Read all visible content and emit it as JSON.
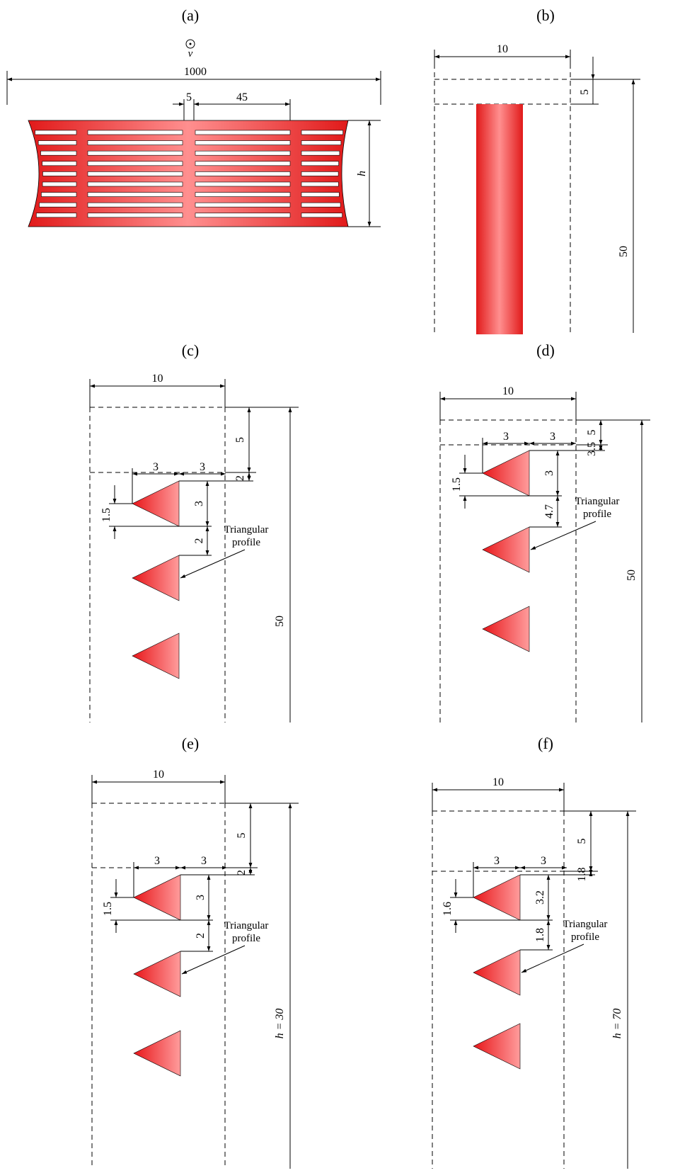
{
  "panels": {
    "a": {
      "caption": "(a)",
      "velocity_symbol": "v",
      "width_label": "1000",
      "gap_label": "5",
      "pitch_label": "45",
      "height_label": "h",
      "slot_rows": 9
    },
    "b": {
      "caption": "(b)",
      "width_label": "10",
      "offset_label": "5",
      "length_label": "50"
    },
    "c": {
      "caption": "(c)",
      "width_label": "10",
      "offset_label": "5",
      "gap_top_label": "2",
      "tri_left_label": "3",
      "tri_right_label": "3",
      "tri_half_label": "1.5",
      "tri_height_label": "3",
      "spacing_label": "2",
      "length_label": "50",
      "note_line1": "Triangular",
      "note_line2": "profile"
    },
    "d": {
      "caption": "(d)",
      "width_label": "10",
      "offset_label": "5",
      "gap_top_label": "3.5",
      "tri_left_label": "3",
      "tri_right_label": "3",
      "tri_half_label": "1.5",
      "tri_height_label": "3",
      "spacing_label": "4.7",
      "length_label": "50",
      "note_line1": "Triangular",
      "note_line2": "profile"
    },
    "e": {
      "caption": "(e)",
      "width_label": "10",
      "offset_label": "5",
      "gap_top_label": "2",
      "tri_left_label": "3",
      "tri_right_label": "3",
      "tri_half_label": "1.5",
      "tri_height_label": "3",
      "spacing_label": "2",
      "length_label": "h = 30",
      "note_line1": "Triangular",
      "note_line2": "profile"
    },
    "f": {
      "caption": "(f)",
      "width_label": "10",
      "offset_label": "5",
      "gap_top_label": "1.8",
      "tri_left_label": "3",
      "tri_right_label": "3",
      "tri_half_label": "1.6",
      "tri_height_label": "3.2",
      "spacing_label": "1.8",
      "length_label": "h = 70",
      "note_line1": "Triangular",
      "note_line2": "profile"
    }
  },
  "colors": {
    "profile_dark": "#e21a1a",
    "profile_light": "#ff8c8c",
    "line": "#000000"
  }
}
